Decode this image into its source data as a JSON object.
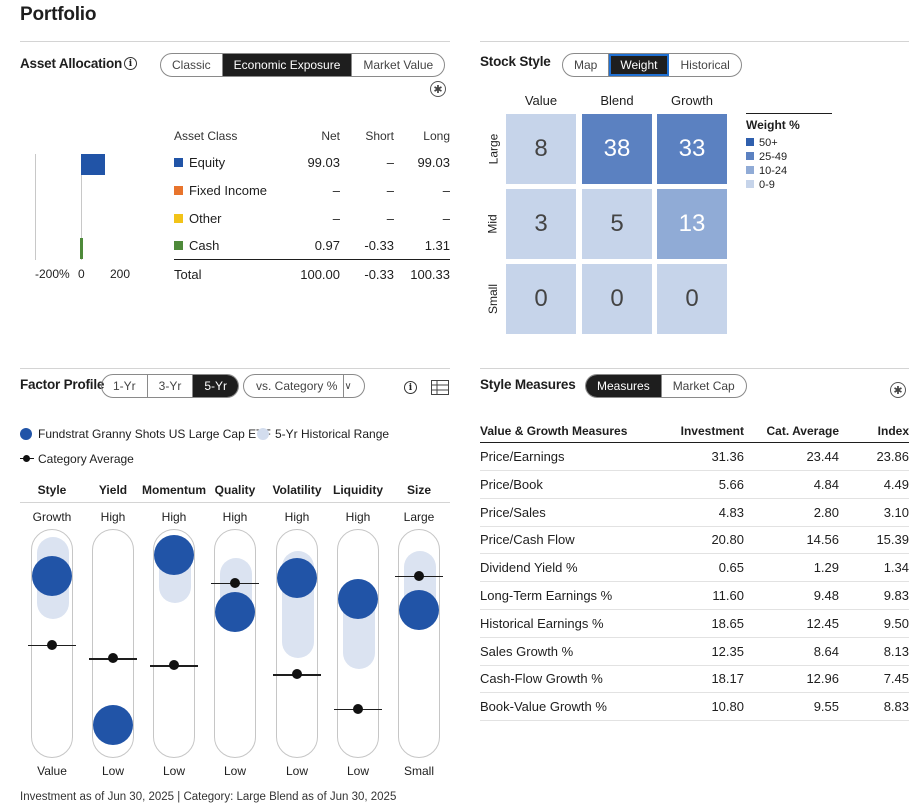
{
  "page": {
    "title": "Portfolio"
  },
  "asset_allocation": {
    "title": "Asset Allocation",
    "tabs": [
      "Classic",
      "Economic Exposure",
      "Market Value"
    ],
    "active_tab": "Economic Exposure",
    "columns": [
      "Asset Class",
      "Net",
      "Short",
      "Long"
    ],
    "rows": [
      {
        "name": "Equity",
        "net": "99.03",
        "short": "–",
        "long": "99.03",
        "color": "#2154a7"
      },
      {
        "name": "Fixed Income",
        "net": "–",
        "short": "–",
        "long": "–",
        "color": "#e8742c"
      },
      {
        "name": "Other",
        "net": "–",
        "short": "–",
        "long": "–",
        "color": "#f2c318"
      },
      {
        "name": "Cash",
        "net": "0.97",
        "short": "-0.33",
        "long": "1.31",
        "color": "#4e8a3a"
      }
    ],
    "total": {
      "name": "Total",
      "net": "100.00",
      "short": "-0.33",
      "long": "100.33"
    },
    "axis_labels": [
      "-200%",
      "0",
      "200"
    ]
  },
  "stock_style": {
    "title": "Stock Style",
    "tabs": [
      "Map",
      "Weight",
      "Historical"
    ],
    "active_tab": "Weight",
    "columns": [
      "Value",
      "Blend",
      "Growth"
    ],
    "rows": [
      "Large",
      "Mid",
      "Small"
    ],
    "values": [
      [
        8,
        38,
        33
      ],
      [
        3,
        5,
        13
      ],
      [
        0,
        0,
        0
      ]
    ],
    "legend": {
      "title": "Weight %",
      "items": [
        {
          "label": "50+",
          "color": "#2f5fad"
        },
        {
          "label": "25-49",
          "color": "#5b81c1"
        },
        {
          "label": "10-24",
          "color": "#90abd6"
        },
        {
          "label": "0-9",
          "color": "#c6d4ea"
        }
      ]
    }
  },
  "factor_profile": {
    "title": "Factor Profile",
    "tabs": [
      "1-Yr",
      "3-Yr",
      "5-Yr"
    ],
    "active_tab": "5-Yr",
    "compare_select": "vs. Category %",
    "legend": {
      "fund": "Fundstrat Granny Shots US Large Cap ETF",
      "range": "5-Yr Historical Range",
      "category": "Category Average"
    },
    "factors": [
      {
        "name": "Style",
        "top": "Growth",
        "bottom": "Value",
        "fund": 0.8,
        "cat": 0.5,
        "range": [
          0.7,
          0.88
        ]
      },
      {
        "name": "Yield",
        "top": "High",
        "bottom": "Low",
        "fund": 0.15,
        "cat": 0.44,
        "range": [
          0.15,
          0.15
        ]
      },
      {
        "name": "Momentum",
        "top": "High",
        "bottom": "Low",
        "fund": 0.89,
        "cat": 0.41,
        "range": [
          0.77,
          0.89
        ]
      },
      {
        "name": "Quality",
        "top": "High",
        "bottom": "Low",
        "fund": 0.64,
        "cat": 0.77,
        "range": [
          0.64,
          0.79
        ]
      },
      {
        "name": "Volatility",
        "top": "High",
        "bottom": "Low",
        "fund": 0.79,
        "cat": 0.37,
        "range": [
          0.53,
          0.82
        ]
      },
      {
        "name": "Liquidity",
        "top": "High",
        "bottom": "Low",
        "fund": 0.7,
        "cat": 0.22,
        "range": [
          0.48,
          0.7
        ]
      },
      {
        "name": "Size",
        "top": "Large",
        "bottom": "Small",
        "fund": 0.65,
        "cat": 0.8,
        "range": [
          0.65,
          0.82
        ]
      }
    ]
  },
  "style_measures": {
    "title": "Style Measures",
    "tabs": [
      "Measures",
      "Market Cap"
    ],
    "active_tab": "Measures",
    "columns": [
      "Value & Growth Measures",
      "Investment",
      "Cat. Average",
      "Index"
    ],
    "rows": [
      [
        "Price/Earnings",
        "31.36",
        "23.44",
        "23.86"
      ],
      [
        "Price/Book",
        "5.66",
        "4.84",
        "4.49"
      ],
      [
        "Price/Sales",
        "4.83",
        "2.80",
        "3.10"
      ],
      [
        "Price/Cash Flow",
        "20.80",
        "14.56",
        "15.39"
      ],
      [
        "Dividend Yield %",
        "0.65",
        "1.29",
        "1.34"
      ],
      [
        "Long-Term Earnings %",
        "11.60",
        "9.48",
        "9.83"
      ],
      [
        "Historical Earnings %",
        "18.65",
        "12.45",
        "9.50"
      ],
      [
        "Sales Growth %",
        "12.35",
        "8.64",
        "8.13"
      ],
      [
        "Cash-Flow Growth %",
        "18.17",
        "12.96",
        "7.45"
      ],
      [
        "Book-Value Growth %",
        "10.80",
        "9.55",
        "8.83"
      ]
    ]
  },
  "footer": {
    "note": "Investment as of Jun 30, 2025 | Category: Large Blend as of Jun 30, 2025"
  }
}
